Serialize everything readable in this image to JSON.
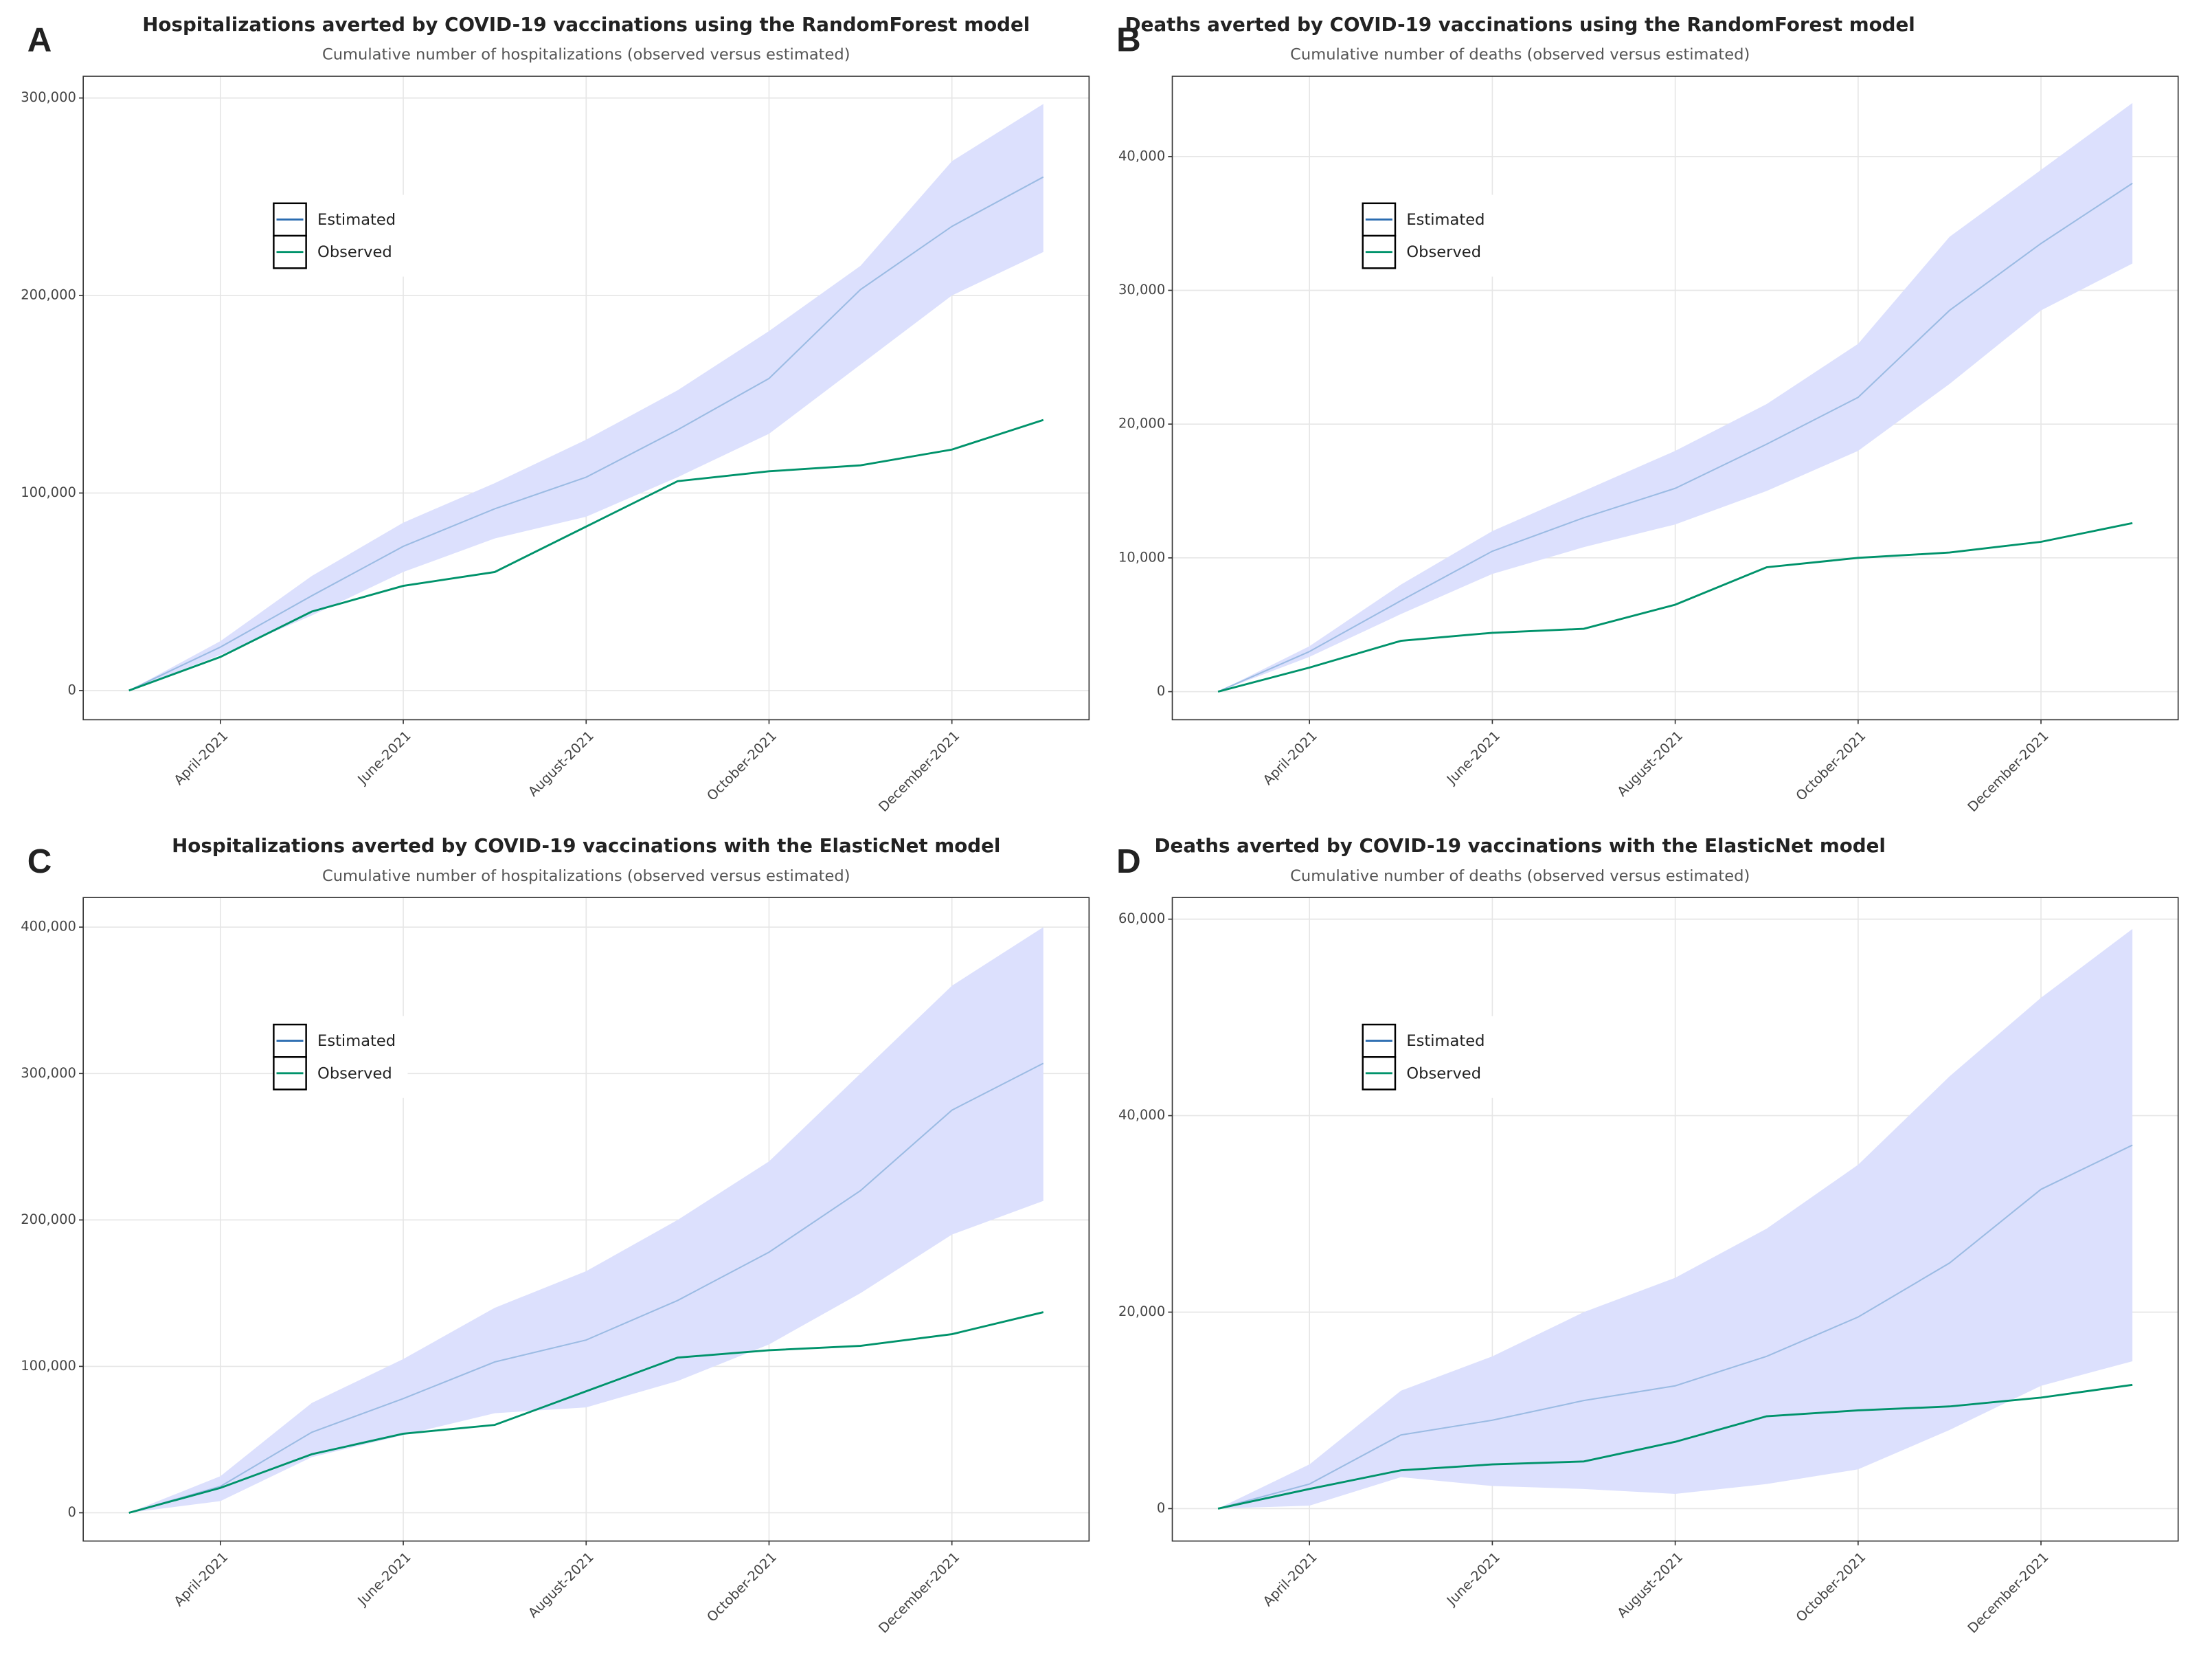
{
  "chart_data": [
    {
      "type": "line",
      "panel": "A",
      "title": "Hospitalizations averted by COVID-19 vaccinations using the RandomForest model",
      "subtitle": "Cumulative number of hospitalizations (observed versus estimated)",
      "x": [
        "2021-03",
        "2021-04",
        "2021-05",
        "2021-06",
        "2021-07",
        "2021-08",
        "2021-09",
        "2021-10",
        "2021-11",
        "2021-12",
        "2022-01"
      ],
      "xticks": [
        {
          "value": "2021-04",
          "label": "April-2021"
        },
        {
          "value": "2021-06",
          "label": "June-2021"
        },
        {
          "value": "2021-08",
          "label": "August-2021"
        },
        {
          "value": "2021-10",
          "label": "October-2021"
        },
        {
          "value": "2021-12",
          "label": "December-2021"
        }
      ],
      "ylim": [
        -14800,
        311000
      ],
      "yticks": [
        0,
        {
          "value": 100000,
          "label": "100,000"
        },
        {
          "value": 200000,
          "label": "200,000"
        },
        {
          "value": 300000,
          "label": "300,000"
        }
      ],
      "grid": true,
      "band": {
        "color": "#dce0fd",
        "lower": [
          0,
          18000,
          38000,
          60000,
          77000,
          88000,
          108000,
          130000,
          165000,
          200000,
          222000
        ],
        "upper": [
          0,
          25000,
          58000,
          85000,
          105000,
          127000,
          152000,
          182000,
          215000,
          268000,
          297000
        ]
      },
      "series": [
        {
          "name": "Estimated",
          "color": "#9bbbe3",
          "values": [
            0,
            22000,
            48000,
            73000,
            92000,
            108000,
            132000,
            158000,
            203000,
            235000,
            260000
          ]
        },
        {
          "name": "Observed",
          "color": "#00936b",
          "values": [
            0,
            17000,
            40000,
            53000,
            60000,
            83000,
            106000,
            111000,
            114000,
            122000,
            137000
          ]
        }
      ]
    },
    {
      "type": "line",
      "panel": "B",
      "title": "Deaths averted by COVID-19 vaccinations using the RandomForest model",
      "subtitle": "Cumulative number of deaths (observed versus estimated)",
      "x": [
        "2021-03",
        "2021-04",
        "2021-05",
        "2021-06",
        "2021-07",
        "2021-08",
        "2021-09",
        "2021-10",
        "2021-11",
        "2021-12",
        "2022-01"
      ],
      "xticks": [
        {
          "value": "2021-04",
          "label": "April-2021"
        },
        {
          "value": "2021-06",
          "label": "June-2021"
        },
        {
          "value": "2021-08",
          "label": "August-2021"
        },
        {
          "value": "2021-10",
          "label": "October-2021"
        },
        {
          "value": "2021-12",
          "label": "December-2021"
        }
      ],
      "ylim": [
        -2100,
        46000
      ],
      "yticks": [
        0,
        {
          "value": 10000,
          "label": "10,000"
        },
        {
          "value": 20000,
          "label": "20,000"
        },
        {
          "value": 30000,
          "label": "30,000"
        },
        {
          "value": 40000,
          "label": "40,000"
        }
      ],
      "grid": true,
      "band": {
        "color": "#dce0fd",
        "lower": [
          0,
          2600,
          5800,
          8800,
          10800,
          12500,
          15000,
          18000,
          23000,
          28500,
          32000
        ],
        "upper": [
          0,
          3400,
          8000,
          12000,
          15000,
          18000,
          21500,
          26000,
          34000,
          39000,
          44000
        ]
      },
      "series": [
        {
          "name": "Estimated",
          "color": "#9bbbe3",
          "values": [
            0,
            3000,
            6800,
            10500,
            13000,
            15200,
            18500,
            22000,
            28500,
            33500,
            38000
          ]
        },
        {
          "name": "Observed",
          "color": "#00936b",
          "values": [
            0,
            1800,
            3800,
            4400,
            4700,
            6500,
            9300,
            10000,
            10400,
            11200,
            12600
          ]
        }
      ]
    },
    {
      "type": "line",
      "panel": "C",
      "title": "Hospitalizations averted by COVID-19 vaccinations with the ElasticNet model",
      "subtitle": "Cumulative number of hospitalizations (observed versus estimated)",
      "x": [
        "2021-03",
        "2021-04",
        "2021-05",
        "2021-06",
        "2021-07",
        "2021-08",
        "2021-09",
        "2021-10",
        "2021-11",
        "2021-12",
        "2022-01"
      ],
      "xticks": [
        {
          "value": "2021-04",
          "label": "April-2021"
        },
        {
          "value": "2021-06",
          "label": "June-2021"
        },
        {
          "value": "2021-08",
          "label": "August-2021"
        },
        {
          "value": "2021-10",
          "label": "October-2021"
        },
        {
          "value": "2021-12",
          "label": "December-2021"
        }
      ],
      "ylim": [
        -19300,
        420200
      ],
      "yticks": [
        0,
        {
          "value": 100000,
          "label": "100,000"
        },
        {
          "value": 200000,
          "label": "200,000"
        },
        {
          "value": 300000,
          "label": "300,000"
        },
        {
          "value": 400000,
          "label": "400,000"
        }
      ],
      "grid": true,
      "band": {
        "color": "#dce0fd",
        "lower": [
          0,
          8000,
          38000,
          53000,
          68000,
          72000,
          90000,
          115000,
          150000,
          190000,
          213000
        ],
        "upper": [
          0,
          25000,
          75000,
          105000,
          140000,
          165000,
          200000,
          240000,
          300000,
          360000,
          400000
        ]
      },
      "series": [
        {
          "name": "Estimated",
          "color": "#9bbbe3",
          "values": [
            0,
            18000,
            55000,
            78000,
            103000,
            118000,
            145000,
            178000,
            220000,
            275000,
            307000
          ]
        },
        {
          "name": "Observed",
          "color": "#00936b",
          "values": [
            0,
            17000,
            40000,
            54000,
            60000,
            83000,
            106000,
            111000,
            114000,
            122000,
            137000
          ]
        }
      ]
    },
    {
      "type": "line",
      "panel": "D",
      "title": "Deaths averted by COVID-19 vaccinations with the ElasticNet model",
      "subtitle": "Cumulative number of deaths (observed versus estimated)",
      "x": [
        "2021-03",
        "2021-04",
        "2021-05",
        "2021-06",
        "2021-07",
        "2021-08",
        "2021-09",
        "2021-10",
        "2021-11",
        "2021-12",
        "2022-01"
      ],
      "xticks": [
        {
          "value": "2021-04",
          "label": "April-2021"
        },
        {
          "value": "2021-06",
          "label": "June-2021"
        },
        {
          "value": "2021-08",
          "label": "August-2021"
        },
        {
          "value": "2021-10",
          "label": "October-2021"
        },
        {
          "value": "2021-12",
          "label": "December-2021"
        }
      ],
      "ylim": [
        -3300,
        62200
      ],
      "yticks": [
        0,
        {
          "value": 20000,
          "label": "20,000"
        },
        {
          "value": 40000,
          "label": "40,000"
        },
        {
          "value": 60000,
          "label": "60,000"
        }
      ],
      "grid": true,
      "band": {
        "color": "#dce0fd",
        "lower": [
          0,
          300,
          3200,
          2300,
          2000,
          1500,
          2500,
          4000,
          8000,
          12500,
          15000
        ],
        "upper": [
          0,
          4500,
          12000,
          15500,
          20000,
          23500,
          28500,
          35000,
          44000,
          52000,
          59000
        ]
      },
      "series": [
        {
          "name": "Estimated",
          "color": "#9bbbe3",
          "values": [
            0,
            2500,
            7500,
            9000,
            11000,
            12500,
            15500,
            19500,
            25000,
            32500,
            37000
          ]
        },
        {
          "name": "Observed",
          "color": "#00936b",
          "values": [
            0,
            2000,
            3900,
            4500,
            4800,
            6800,
            9400,
            10000,
            10400,
            11300,
            12600
          ]
        }
      ]
    }
  ]
}
